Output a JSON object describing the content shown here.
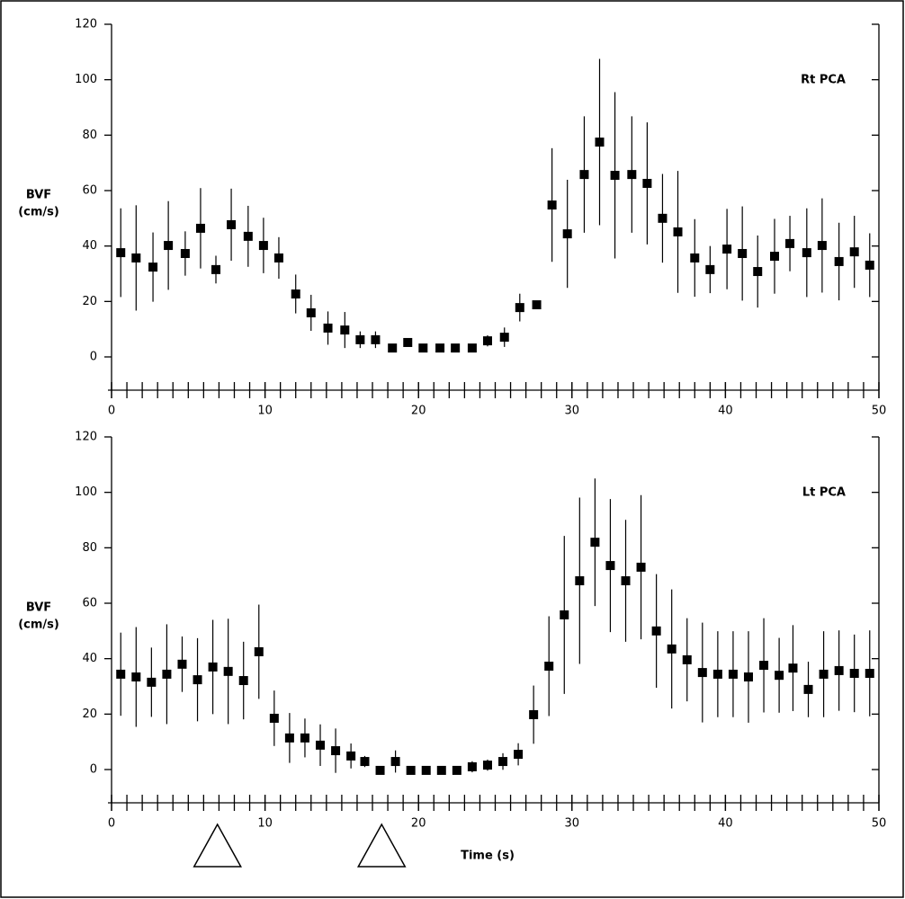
{
  "chart_data": [
    {
      "type": "errorbar-scatter",
      "annotation": "Rt PCA",
      "ylabel": [
        "BVF",
        "(cm/s)"
      ],
      "color": "#000000",
      "xlim": [
        0,
        50
      ],
      "xticks": [
        0,
        10,
        20,
        30,
        40,
        50
      ],
      "x_minor_tick_step": 1,
      "ylim": [
        -12,
        120
      ],
      "yticks": [
        0,
        20,
        40,
        60,
        80,
        100,
        120
      ],
      "right_axis": true,
      "x": [
        0.6,
        1.6,
        2.7,
        3.7,
        4.8,
        5.8,
        6.8,
        7.8,
        8.9,
        9.9,
        10.9,
        12.0,
        13.0,
        14.1,
        15.2,
        16.2,
        17.2,
        18.3,
        19.3,
        20.3,
        21.4,
        22.4,
        23.5,
        24.5,
        25.6,
        26.6,
        27.7,
        28.7,
        29.7,
        30.8,
        31.8,
        32.8,
        33.9,
        34.9,
        35.9,
        36.9,
        38.0,
        39.0,
        40.1,
        41.1,
        42.1,
        43.2,
        44.2,
        45.3,
        46.3,
        47.4,
        48.4,
        49.4
      ],
      "values": [
        37.6,
        35.7,
        32.4,
        40.2,
        37.3,
        46.4,
        31.5,
        47.7,
        43.5,
        40.2,
        35.7,
        22.7,
        15.9,
        10.4,
        9.7,
        6.2,
        6.2,
        3.2,
        5.2,
        3.2,
        3.2,
        3.2,
        3.2,
        5.8,
        7.1,
        17.8,
        18.8,
        54.8,
        44.4,
        65.8,
        77.5,
        65.5,
        65.8,
        62.6,
        50,
        45.1,
        35.7,
        31.5,
        38.9,
        37.3,
        30.8,
        36.3,
        40.9,
        37.6,
        40.2,
        34.4,
        37.9,
        33.1
      ],
      "errors": [
        16,
        19,
        12.5,
        16,
        8,
        14.5,
        5,
        13,
        11,
        10,
        7.5,
        7,
        6.5,
        6,
        6.5,
        3,
        3,
        0,
        1,
        0,
        0,
        0,
        0,
        2,
        3.5,
        5,
        0,
        20.5,
        19.5,
        21,
        30,
        30,
        21,
        22,
        16,
        22,
        14,
        8.5,
        14.5,
        17,
        13,
        13.5,
        10,
        16,
        17,
        14,
        13,
        11.5
      ]
    },
    {
      "type": "errorbar-scatter",
      "annotation": "Lt PCA",
      "ylabel": [
        "BVF",
        "(cm/s)"
      ],
      "xlabel": "Time (s)",
      "color": "#000000",
      "xlim": [
        0,
        50
      ],
      "xticks": [
        0,
        10,
        20,
        30,
        40,
        50
      ],
      "x_minor_tick_step": 1,
      "ylim": [
        -12,
        120
      ],
      "yticks": [
        0,
        20,
        40,
        60,
        80,
        100,
        120
      ],
      "right_axis": true,
      "event_markers": [
        6.9,
        17.6
      ],
      "x": [
        0.6,
        1.6,
        2.6,
        3.6,
        4.6,
        5.6,
        6.6,
        7.6,
        8.6,
        9.6,
        10.6,
        11.6,
        12.6,
        13.6,
        14.6,
        15.6,
        16.5,
        17.5,
        18.5,
        19.5,
        20.5,
        21.5,
        22.5,
        23.5,
        24.5,
        25.5,
        26.5,
        27.5,
        28.5,
        29.5,
        30.5,
        31.5,
        32.5,
        33.5,
        34.5,
        35.5,
        36.5,
        37.5,
        38.5,
        39.5,
        40.5,
        41.5,
        42.5,
        43.5,
        44.4,
        45.4,
        46.4,
        47.4,
        48.4,
        49.4
      ],
      "values": [
        34.4,
        33.4,
        31.5,
        34.4,
        38,
        32.4,
        37,
        35.4,
        32.1,
        42.5,
        18.5,
        11.4,
        11.4,
        8.8,
        6.8,
        4.9,
        2.9,
        -0.3,
        2.9,
        -0.3,
        -0.3,
        -0.3,
        -0.3,
        1,
        1.6,
        2.9,
        5.5,
        19.8,
        37.3,
        55.8,
        68.1,
        82,
        73.6,
        68.1,
        73,
        50,
        43.5,
        39.6,
        35,
        34.4,
        34.4,
        33.4,
        37.6,
        34,
        36.6,
        28.9,
        34.4,
        35.7,
        34.7,
        34.7
      ],
      "errors": [
        15,
        18,
        12.5,
        18,
        10,
        15,
        17,
        19,
        14,
        17,
        10,
        9,
        7,
        7.5,
        8,
        4.5,
        2,
        0,
        4,
        0,
        0,
        0,
        0,
        2,
        2,
        3,
        4,
        10.5,
        18,
        28.5,
        30,
        23,
        24,
        22,
        26,
        20.5,
        21.5,
        15,
        18,
        15.5,
        15.5,
        16.5,
        17,
        13.5,
        15.5,
        10,
        15.5,
        14.5,
        14,
        15.5
      ]
    }
  ]
}
